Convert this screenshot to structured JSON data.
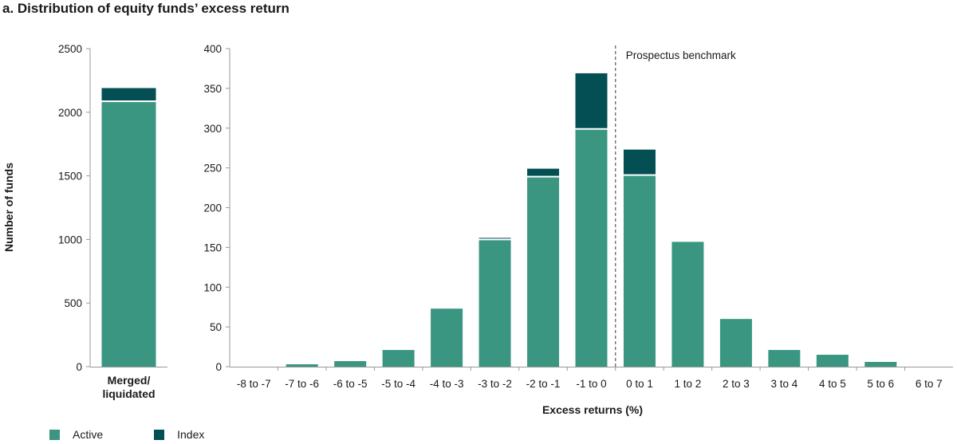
{
  "title": "a. Distribution of equity funds’ excess return",
  "colors": {
    "active": "#3a9680",
    "index": "#044f53",
    "axis": "#999999",
    "benchmark_line": "#666666"
  },
  "legend": [
    {
      "name": "Active",
      "color": "#3a9680"
    },
    {
      "name": "Index",
      "color": "#044f53"
    }
  ],
  "chart_data": [
    {
      "type": "bar",
      "stacked": true,
      "categories": [
        "Merged/ liquidated"
      ],
      "series": [
        {
          "name": "Active",
          "values": [
            2080
          ]
        },
        {
          "name": "Index",
          "values": [
            110
          ]
        }
      ],
      "ylabel": "Number of funds",
      "ylim": [
        0,
        2500
      ],
      "yticks": [
        0,
        500,
        1000,
        1500,
        2000,
        2500
      ]
    },
    {
      "type": "bar",
      "stacked": true,
      "categories": [
        "-8 to -7",
        "-7 to -6",
        "-6 to -5",
        "-5 to -4",
        "-4 to -3",
        "-3 to -2",
        "-2 to -1",
        "-1 to 0",
        "0 to 1",
        "1 to 2",
        "2 to 3",
        "3 to 4",
        "4 to 5",
        "5 to 6",
        "6 to 7"
      ],
      "series": [
        {
          "name": "Active",
          "values": [
            0,
            3,
            7,
            21,
            73,
            159,
            238,
            298,
            240,
            157,
            60,
            21,
            15,
            6,
            0
          ]
        },
        {
          "name": "Index",
          "values": [
            0,
            0,
            0,
            0,
            0,
            3,
            11,
            71,
            33,
            0,
            0,
            0,
            0,
            0,
            0
          ]
        }
      ],
      "xlabel": "Excess returns (%)",
      "ylim": [
        0,
        400
      ],
      "yticks": [
        0,
        50,
        100,
        150,
        200,
        250,
        300,
        350,
        400
      ],
      "annotation": {
        "text": "Prospectus benchmark",
        "x_between": [
          "-1 to 0",
          "0 to 1"
        ]
      }
    }
  ]
}
